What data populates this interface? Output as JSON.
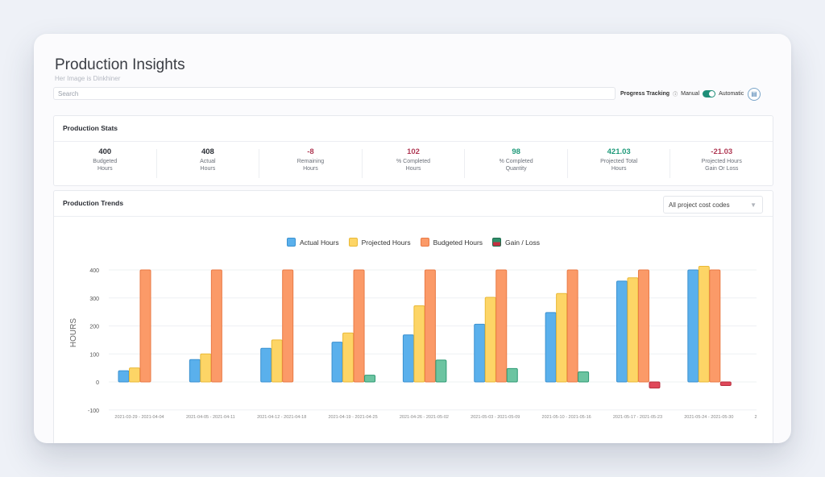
{
  "page": {
    "title": "Production Insights",
    "subtitle": "Her Image is Dinkhiner",
    "search_placeholder": "Search",
    "progress_tracking": {
      "label": "Progress Tracking",
      "info": "ⓘ",
      "manual": "Manual",
      "automatic": "Automatic",
      "state": "Automatic"
    },
    "doc_icon": "document-icon"
  },
  "stats_panel": {
    "title": "Production Stats",
    "stats": [
      {
        "value": "400",
        "label": "Budgeted\nHours",
        "tone": "neutral"
      },
      {
        "value": "408",
        "label": "Actual\nHours",
        "tone": "neutral"
      },
      {
        "value": "-8",
        "label": "Remaining\nHours",
        "tone": "neg"
      },
      {
        "value": "102",
        "label": "% Completed\nHours",
        "tone": "neg"
      },
      {
        "value": "98",
        "label": "% Completed\nQuantity",
        "tone": "pos"
      },
      {
        "value": "421.03",
        "label": "Projected Total\nHours",
        "tone": "pos"
      },
      {
        "value": "-21.03",
        "label": "Projected Hours\nGain Or Loss",
        "tone": "neg"
      }
    ]
  },
  "trends_panel": {
    "title": "Production Trends",
    "cost_code_select": "All project cost codes"
  },
  "colors": {
    "actual": "#5ab0ec",
    "projected": "#fdd566",
    "budgeted": "#fb9a68",
    "gain": "#6cc4a1",
    "loss": "#e0485a"
  },
  "chart_data": {
    "type": "bar",
    "ylabel": "HOURS",
    "ylim": [
      -100,
      400
    ],
    "yticks": [
      400,
      300,
      200,
      100,
      0,
      -100
    ],
    "categories": [
      "2021-03-29 - 2021-04-04",
      "2021-04-05 - 2021-04-11",
      "2021-04-12 - 2021-04-18",
      "2021-04-19 - 2021-04-25",
      "2021-04-26 - 2021-05-02",
      "2021-05-03 - 2021-05-09",
      "2021-05-10 - 2021-05-16",
      "2021-05-17 - 2021-05-23",
      "2021-05-24 - 2021-05-30"
    ],
    "extra_tick": "2",
    "series": [
      {
        "name": "Actual Hours",
        "color_key": "actual",
        "values": [
          40,
          80,
          120,
          142,
          168,
          206,
          248,
          360,
          400
        ]
      },
      {
        "name": "Projected Hours",
        "color_key": "projected",
        "values": [
          50,
          100,
          150,
          175,
          272,
          302,
          316,
          372,
          413
        ]
      },
      {
        "name": "Budgeted Hours",
        "color_key": "budgeted",
        "values": [
          400,
          400,
          400,
          400,
          400,
          400,
          400,
          400,
          400
        ]
      },
      {
        "name": "Gain / Loss",
        "color_key": "gain",
        "values": [
          null,
          null,
          null,
          24,
          78,
          48,
          36,
          -22,
          -13
        ]
      }
    ],
    "grid": true,
    "legend": "top-center"
  }
}
